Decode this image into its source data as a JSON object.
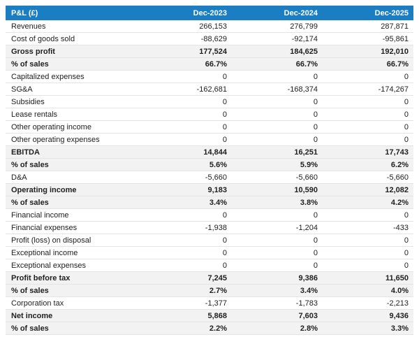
{
  "table": {
    "header": {
      "label": "P&L (£)",
      "columns": [
        "Dec-2023",
        "Dec-2024",
        "Dec-2025"
      ]
    },
    "rows": [
      {
        "label": "Revenues",
        "values": [
          "266,153",
          "276,799",
          "287,871"
        ],
        "bold": false
      },
      {
        "label": "Cost of goods sold",
        "values": [
          "-88,629",
          "-92,174",
          "-95,861"
        ],
        "bold": false
      },
      {
        "label": "Gross profit",
        "values": [
          "177,524",
          "184,625",
          "192,010"
        ],
        "bold": true
      },
      {
        "label": "% of sales",
        "values": [
          "66.7%",
          "66.7%",
          "66.7%"
        ],
        "bold": true
      },
      {
        "label": "Capitalized expenses",
        "values": [
          "0",
          "0",
          "0"
        ],
        "bold": false
      },
      {
        "label": "SG&A",
        "values": [
          "-162,681",
          "-168,374",
          "-174,267"
        ],
        "bold": false
      },
      {
        "label": "Subsidies",
        "values": [
          "0",
          "0",
          "0"
        ],
        "bold": false
      },
      {
        "label": "Lease rentals",
        "values": [
          "0",
          "0",
          "0"
        ],
        "bold": false
      },
      {
        "label": "Other operating income",
        "values": [
          "0",
          "0",
          "0"
        ],
        "bold": false
      },
      {
        "label": "Other operating expenses",
        "values": [
          "0",
          "0",
          "0"
        ],
        "bold": false
      },
      {
        "label": "EBITDA",
        "values": [
          "14,844",
          "16,251",
          "17,743"
        ],
        "bold": true
      },
      {
        "label": "% of sales",
        "values": [
          "5.6%",
          "5.9%",
          "6.2%"
        ],
        "bold": true
      },
      {
        "label": "D&A",
        "values": [
          "-5,660",
          "-5,660",
          "-5,660"
        ],
        "bold": false
      },
      {
        "label": "Operating income",
        "values": [
          "9,183",
          "10,590",
          "12,082"
        ],
        "bold": true
      },
      {
        "label": "% of sales",
        "values": [
          "3.4%",
          "3.8%",
          "4.2%"
        ],
        "bold": true
      },
      {
        "label": "Financial income",
        "values": [
          "0",
          "0",
          "0"
        ],
        "bold": false
      },
      {
        "label": "Financial expenses",
        "values": [
          "-1,938",
          "-1,204",
          "-433"
        ],
        "bold": false
      },
      {
        "label": "Profit (loss) on disposal",
        "values": [
          "0",
          "0",
          "0"
        ],
        "bold": false
      },
      {
        "label": "Exceptional income",
        "values": [
          "0",
          "0",
          "0"
        ],
        "bold": false
      },
      {
        "label": "Exceptional expenses",
        "values": [
          "0",
          "0",
          "0"
        ],
        "bold": false
      },
      {
        "label": "Profit before tax",
        "values": [
          "7,245",
          "9,386",
          "11,650"
        ],
        "bold": true
      },
      {
        "label": "% of sales",
        "values": [
          "2.7%",
          "3.4%",
          "4.0%"
        ],
        "bold": true
      },
      {
        "label": "Corporation tax",
        "values": [
          "-1,377",
          "-1,783",
          "-2,213"
        ],
        "bold": false
      },
      {
        "label": "Net income",
        "values": [
          "5,868",
          "7,603",
          "9,436"
        ],
        "bold": true
      },
      {
        "label": "% of sales",
        "values": [
          "2.2%",
          "2.8%",
          "3.3%"
        ],
        "bold": true
      }
    ]
  },
  "colors": {
    "header_bg": "#1b7ec2",
    "header_text": "#ffffff",
    "subtotal_bg": "#f2f2f2",
    "row_border": "#e4e4e4",
    "text": "#212121"
  }
}
